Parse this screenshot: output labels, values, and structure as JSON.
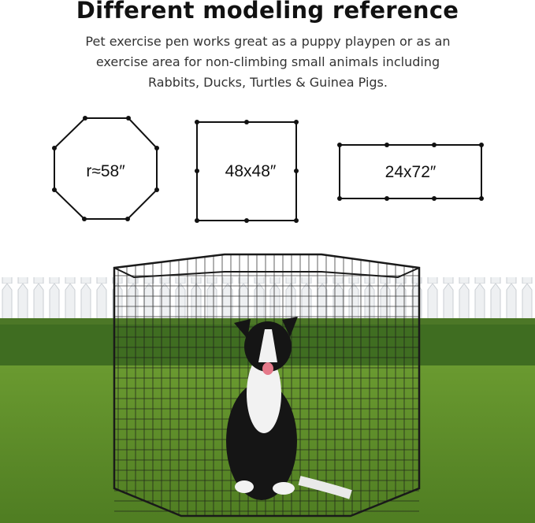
{
  "heading": "Different modeling reference",
  "description": "Pet exercise pen works great as a puppy playpen or as an exercise area for non-climbing small animals including Rabbits, Ducks, Turtles & Guinea Pigs.",
  "shapes": [
    {
      "type": "octagon",
      "label": "r≈58″"
    },
    {
      "type": "square",
      "label": "48x48″"
    },
    {
      "type": "rectangle",
      "label": "24x72″"
    }
  ],
  "photo": {
    "subject": "border collie sitting inside black wire octagonal exercise pen on lawn with white picket fence and hedge"
  },
  "colors": {
    "grass": "#5f8f2c",
    "hedge": "#3e6b1f",
    "fence": "#e9ecef",
    "wire": "#1a1a1a"
  }
}
